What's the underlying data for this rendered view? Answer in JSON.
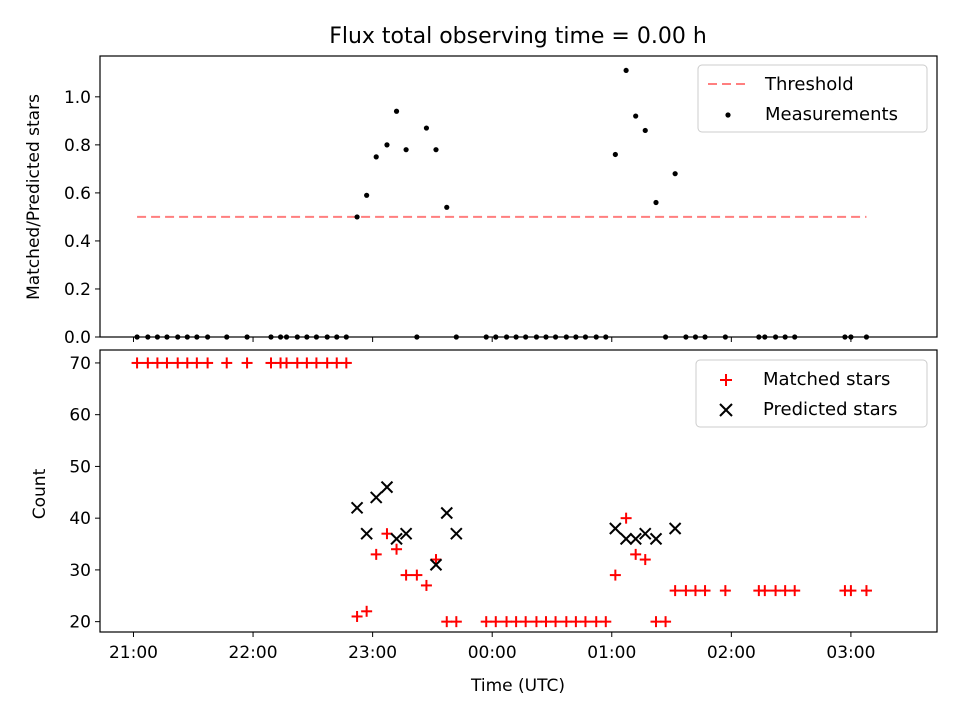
{
  "chart_data": [
    {
      "type": "scatter",
      "title": "Flux total observing time = 0.00 h",
      "xlabel": "",
      "ylabel": "Matched/Predicted stars",
      "xlim_hours": [
        20.72,
        27.72
      ],
      "ylim": [
        0,
        1.17
      ],
      "yticks": [
        0.0,
        0.2,
        0.4,
        0.6,
        0.8,
        1.0
      ],
      "ytick_labels": [
        "0.0",
        "0.2",
        "0.4",
        "0.6",
        "0.8",
        "1.0"
      ],
      "legend_position": "upper right",
      "legend": [
        "Threshold",
        "Measurements"
      ],
      "threshold": {
        "name": "Threshold",
        "value": 0.5,
        "x_range_hours": [
          21.03,
          27.13
        ],
        "color": "#ff7f7f",
        "style": "dashed"
      },
      "series": [
        {
          "name": "Measurements",
          "color": "#000000",
          "marker": "dot",
          "x_hours": [
            21.03,
            21.12,
            21.2,
            21.28,
            21.37,
            21.45,
            21.53,
            21.62,
            21.78,
            21.95,
            22.15,
            22.23,
            22.28,
            22.37,
            22.45,
            22.53,
            22.62,
            22.7,
            22.78,
            22.87,
            22.95,
            23.03,
            23.12,
            23.2,
            23.28,
            23.37,
            23.45,
            23.53,
            23.62,
            23.7,
            23.95,
            24.03,
            24.12,
            24.2,
            24.28,
            24.37,
            24.45,
            24.53,
            24.62,
            24.7,
            24.78,
            24.87,
            24.95,
            25.03,
            25.12,
            25.2,
            25.28,
            25.37,
            25.45,
            25.53,
            25.62,
            25.7,
            25.78,
            25.95,
            26.23,
            26.28,
            26.37,
            26.45,
            26.53,
            26.95,
            27.0,
            27.13
          ],
          "y": [
            0,
            0,
            0,
            0,
            0,
            0,
            0,
            0,
            0,
            0,
            0,
            0,
            0,
            0,
            0,
            0,
            0,
            0,
            0,
            0.5,
            0.59,
            0.75,
            0.8,
            0.94,
            0.78,
            0,
            0.87,
            0.78,
            0.54,
            0,
            0,
            0,
            0,
            0,
            0,
            0,
            0,
            0,
            0,
            0,
            0,
            0,
            0,
            0.76,
            1.11,
            0.92,
            0.86,
            0.56,
            0,
            0.68,
            0,
            0,
            0,
            0,
            0,
            0,
            0,
            0,
            0,
            0,
            0,
            0
          ]
        }
      ]
    },
    {
      "type": "scatter",
      "title": "",
      "xlabel": "Time (UTC)",
      "ylabel": "Count",
      "xlim_hours": [
        20.72,
        27.72
      ],
      "ylim": [
        18,
        72.5
      ],
      "yticks": [
        20,
        30,
        40,
        50,
        60,
        70
      ],
      "ytick_labels": [
        "20",
        "30",
        "40",
        "50",
        "60",
        "70"
      ],
      "xticks_hours": [
        21,
        22,
        23,
        24,
        25,
        26,
        27
      ],
      "xtick_labels": [
        "21:00",
        "22:00",
        "23:00",
        "00:00",
        "01:00",
        "02:00",
        "03:00"
      ],
      "legend_position": "upper right",
      "legend": [
        "Matched stars",
        "Predicted stars"
      ],
      "series": [
        {
          "name": "Matched stars",
          "color": "#ff0000",
          "marker": "plus",
          "x_hours": [
            21.03,
            21.12,
            21.2,
            21.28,
            21.37,
            21.45,
            21.53,
            21.62,
            21.78,
            21.95,
            22.15,
            22.23,
            22.28,
            22.37,
            22.45,
            22.53,
            22.62,
            22.7,
            22.78,
            22.87,
            22.95,
            23.03,
            23.12,
            23.2,
            23.28,
            23.37,
            23.45,
            23.53,
            23.62,
            23.7,
            23.95,
            24.03,
            24.12,
            24.2,
            24.28,
            24.37,
            24.45,
            24.53,
            24.62,
            24.7,
            24.78,
            24.87,
            24.95,
            25.03,
            25.12,
            25.2,
            25.28,
            25.37,
            25.45,
            25.53,
            25.62,
            25.7,
            25.78,
            25.95,
            26.23,
            26.28,
            26.37,
            26.45,
            26.53,
            26.95,
            27.0,
            27.13
          ],
          "y": [
            70,
            70,
            70,
            70,
            70,
            70,
            70,
            70,
            70,
            70,
            70,
            70,
            70,
            70,
            70,
            70,
            70,
            70,
            70,
            21,
            22,
            33,
            37,
            34,
            29,
            29,
            27,
            32,
            20,
            20,
            20,
            20,
            20,
            20,
            20,
            20,
            20,
            20,
            20,
            20,
            20,
            20,
            20,
            29,
            40,
            33,
            32,
            20,
            20,
            26,
            26,
            26,
            26,
            26,
            26,
            26,
            26,
            26,
            26,
            26,
            26,
            26
          ]
        },
        {
          "name": "Predicted stars",
          "color": "#000000",
          "marker": "x",
          "x_hours": [
            22.87,
            22.95,
            23.03,
            23.12,
            23.2,
            23.28,
            23.53,
            23.62,
            23.7,
            25.03,
            25.12,
            25.2,
            25.28,
            25.37,
            25.53
          ],
          "y": [
            42,
            37,
            44,
            46,
            36,
            37,
            31,
            41,
            37,
            38,
            36,
            36,
            37,
            36,
            38
          ]
        }
      ]
    }
  ]
}
